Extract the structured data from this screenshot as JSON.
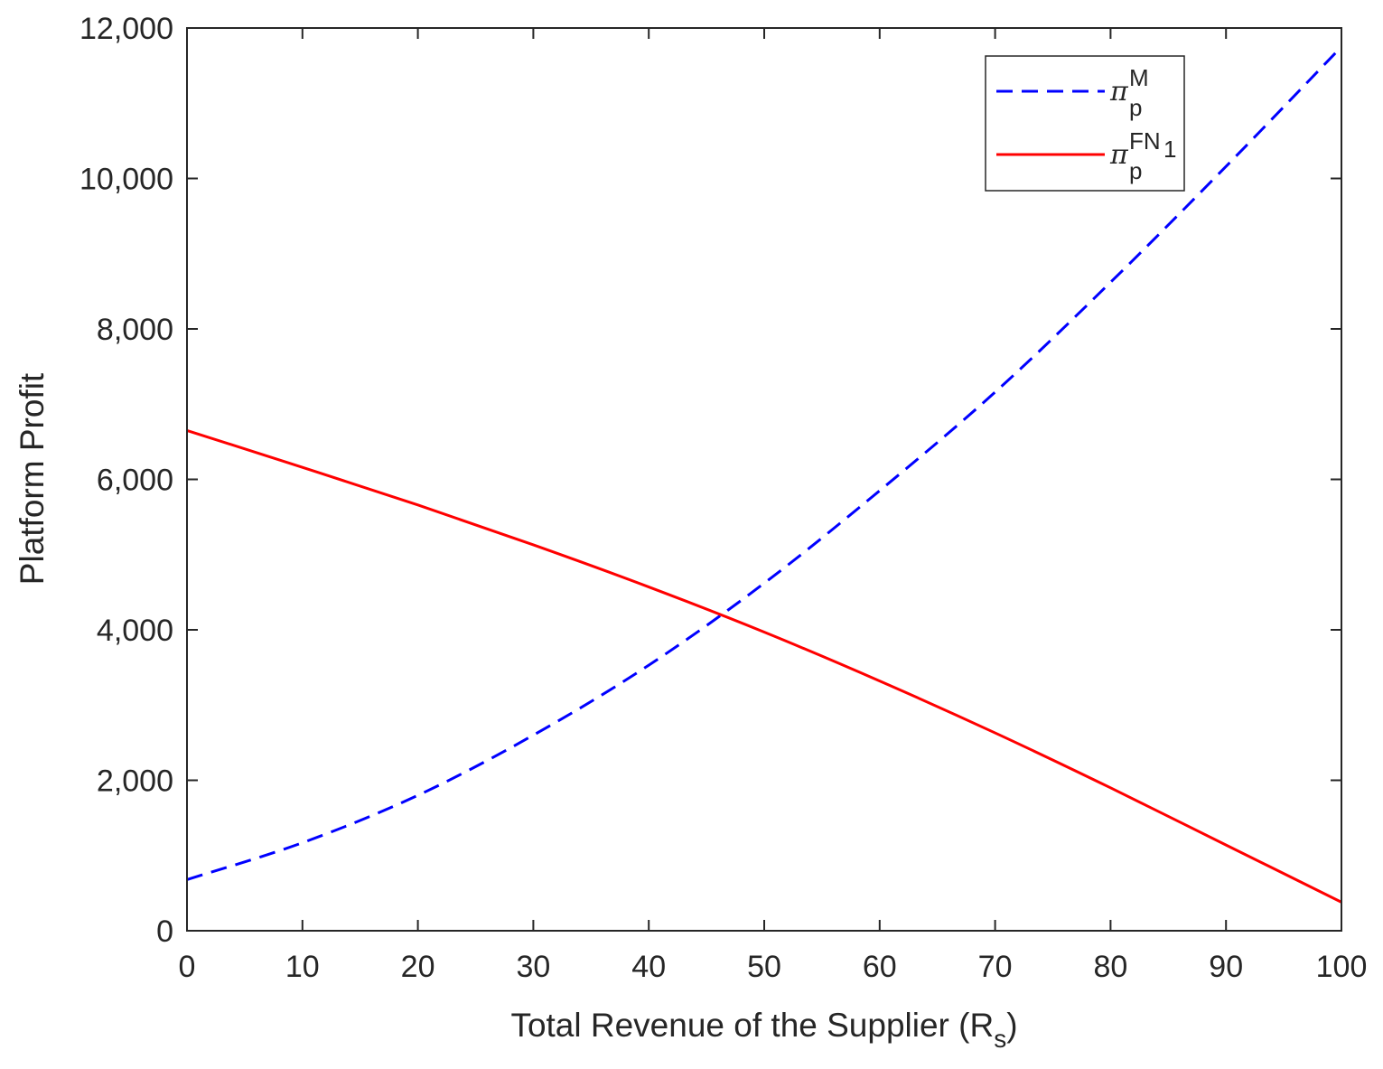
{
  "chart_data": {
    "type": "line",
    "xlabel": "Total Revenue of the Supplier (R",
    "xlabel_sub": "s",
    "xlabel_close": ")",
    "ylabel": "Platform Profit",
    "xlim": [
      0,
      100
    ],
    "ylim": [
      0,
      12000
    ],
    "x_ticks": [
      0,
      10,
      20,
      30,
      40,
      50,
      60,
      70,
      80,
      90,
      100
    ],
    "y_ticks": [
      0,
      2000,
      4000,
      6000,
      8000,
      10000,
      12000
    ],
    "x_tick_labels": [
      "0",
      "10",
      "20",
      "30",
      "40",
      "50",
      "60",
      "70",
      "80",
      "90",
      "100"
    ],
    "y_tick_labels": [
      "0",
      "2,000",
      "4,000",
      "6,000",
      "8,000",
      "10,000",
      "12,000"
    ],
    "grid": false,
    "legend_position": "top-right",
    "x": [
      0,
      10,
      20,
      30,
      40,
      50,
      60,
      70,
      80,
      90,
      100
    ],
    "series": [
      {
        "legend_symbol": "π",
        "legend_sub": "p",
        "legend_sup": "M",
        "legend_sup_sub": "",
        "color": "#0000ff",
        "style": "dashed",
        "values": [
          680,
          1170,
          1800,
          2600,
          3530,
          4620,
          5850,
          7160,
          8620,
          10160,
          11750
        ]
      },
      {
        "legend_symbol": "π",
        "legend_sub": "p",
        "legend_sup": "FN",
        "legend_sup_sub": "1",
        "color": "#ff0000",
        "style": "solid",
        "values": [
          6650,
          6160,
          5660,
          5130,
          4570,
          3970,
          3320,
          2630,
          1900,
          1140,
          380
        ]
      }
    ]
  }
}
